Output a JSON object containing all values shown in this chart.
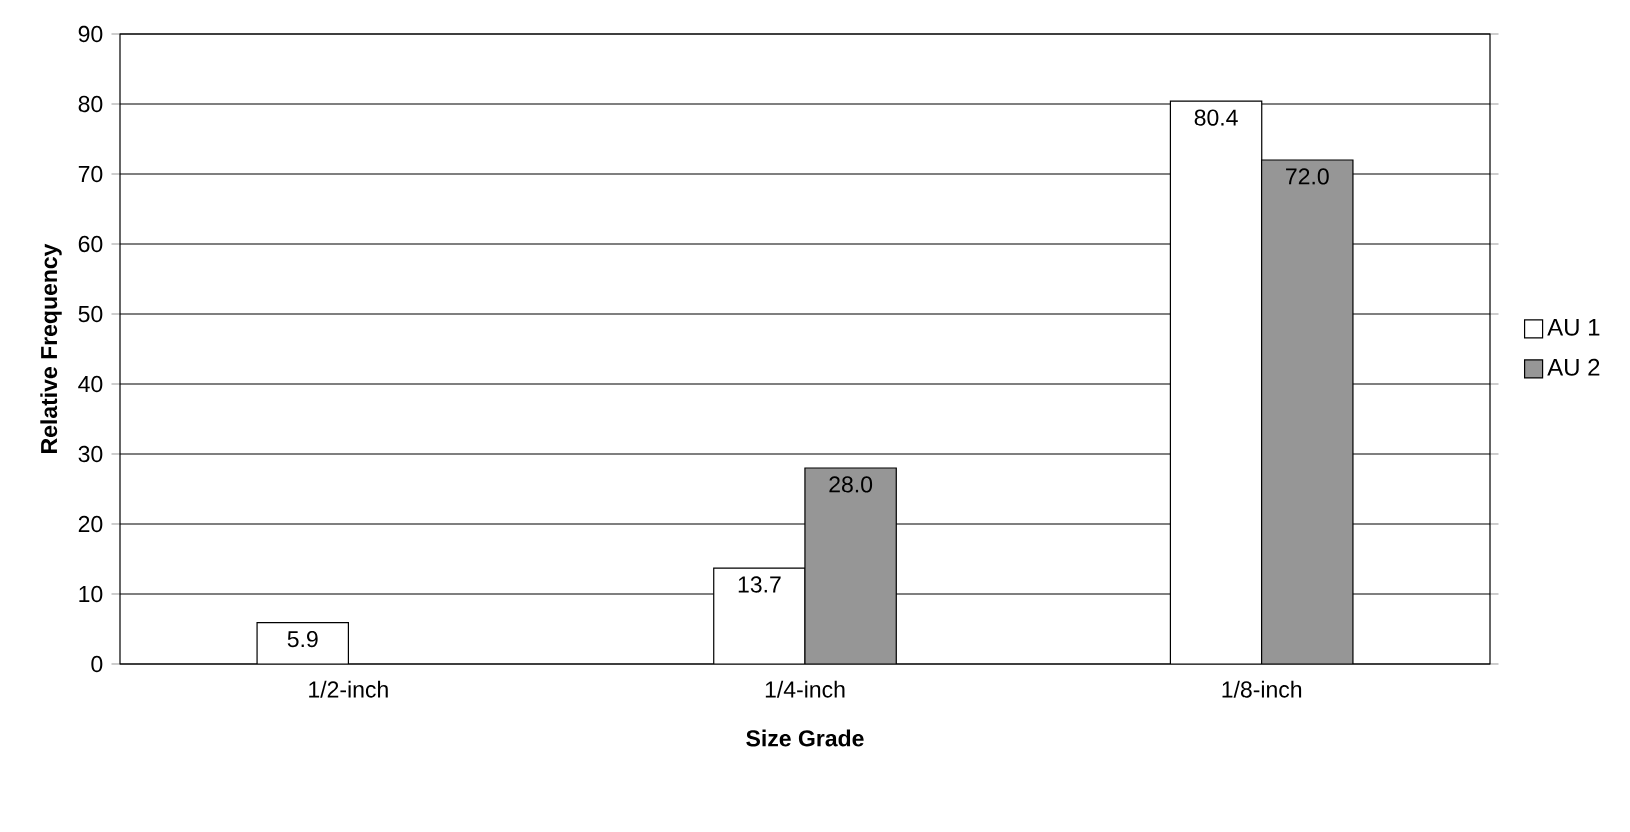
{
  "chart_data": {
    "type": "bar",
    "xlabel": "Size Grade",
    "ylabel": "Relative Frequency",
    "categories": [
      "1/2-inch",
      "1/4-inch",
      "1/8-inch"
    ],
    "series": [
      {
        "name": "AU 1",
        "color": "#ffffff",
        "values": [
          5.9,
          13.7,
          80.4
        ],
        "value_labels": [
          "5.9",
          "13.7",
          "80.4"
        ]
      },
      {
        "name": "AU 2",
        "color": "#969696",
        "values": [
          null,
          28.0,
          72.0
        ],
        "value_labels": [
          null,
          "28.0",
          "72.0"
        ]
      }
    ],
    "ylim": [
      0,
      90
    ],
    "yticks": [
      0,
      10,
      20,
      30,
      40,
      50,
      60,
      70,
      80,
      90
    ],
    "grid": "y",
    "legend": "right"
  }
}
